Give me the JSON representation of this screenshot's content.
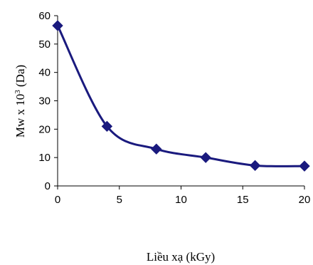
{
  "chart_data": {
    "type": "line",
    "title": "",
    "xlabel": "Liều xạ (kGy)",
    "ylabel": {
      "prefix": "Mw x 10",
      "superscript": "3",
      "suffix": " (Da)"
    },
    "xlim": [
      0,
      20
    ],
    "ylim": [
      0,
      60
    ],
    "xticks": [
      "0",
      "5",
      "10",
      "15",
      "20"
    ],
    "yticks": [
      "0",
      "10",
      "20",
      "30",
      "40",
      "50",
      "60"
    ],
    "grid": false,
    "legend": "none",
    "series": [
      {
        "x": [
          0,
          4,
          8,
          12,
          16,
          20
        ],
        "y": [
          56.5,
          21,
          13,
          10,
          7.2,
          7
        ],
        "color": "#1a1a7e",
        "marker": "diamond",
        "smooth": true
      }
    ]
  }
}
